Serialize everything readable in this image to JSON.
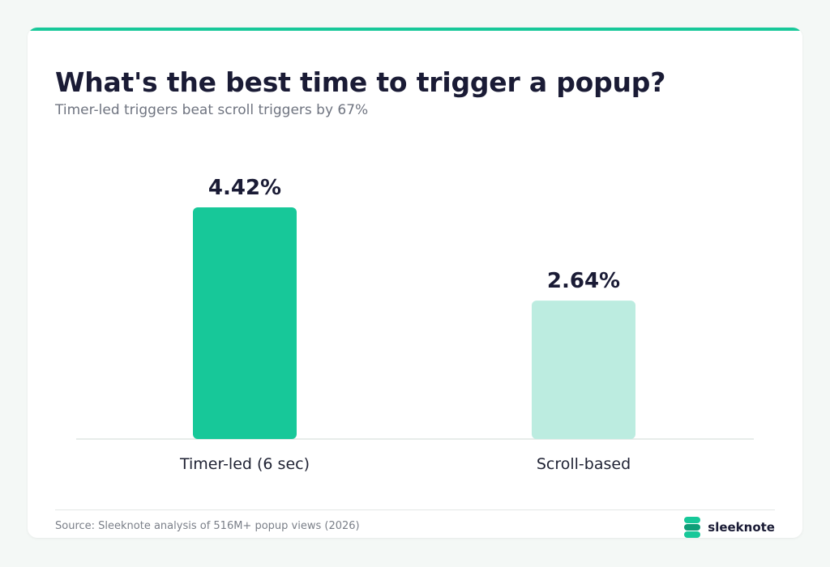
{
  "title": "What's the best time to trigger a popup?",
  "subtitle": "Timer-led triggers beat scroll triggers by 67%",
  "source": "Source: Sleeknote analysis of 516M+ popup views (2026)",
  "brand": {
    "name": "sleeknote",
    "icon": "sleeknote-logo-icon"
  },
  "colors": {
    "accent": "#17c899",
    "light_bar": "#bcece0",
    "text": "#1a1b35"
  },
  "chart_data": {
    "type": "bar",
    "categories": [
      "Timer-led (6 sec)",
      "Scroll-based"
    ],
    "values": [
      4.42,
      2.64
    ],
    "value_labels": [
      "4.42%",
      "2.64%"
    ],
    "bar_colors": [
      "#17c899",
      "#bcece0"
    ],
    "ylim": [
      0,
      4.42
    ],
    "grid": false,
    "legend": false
  }
}
